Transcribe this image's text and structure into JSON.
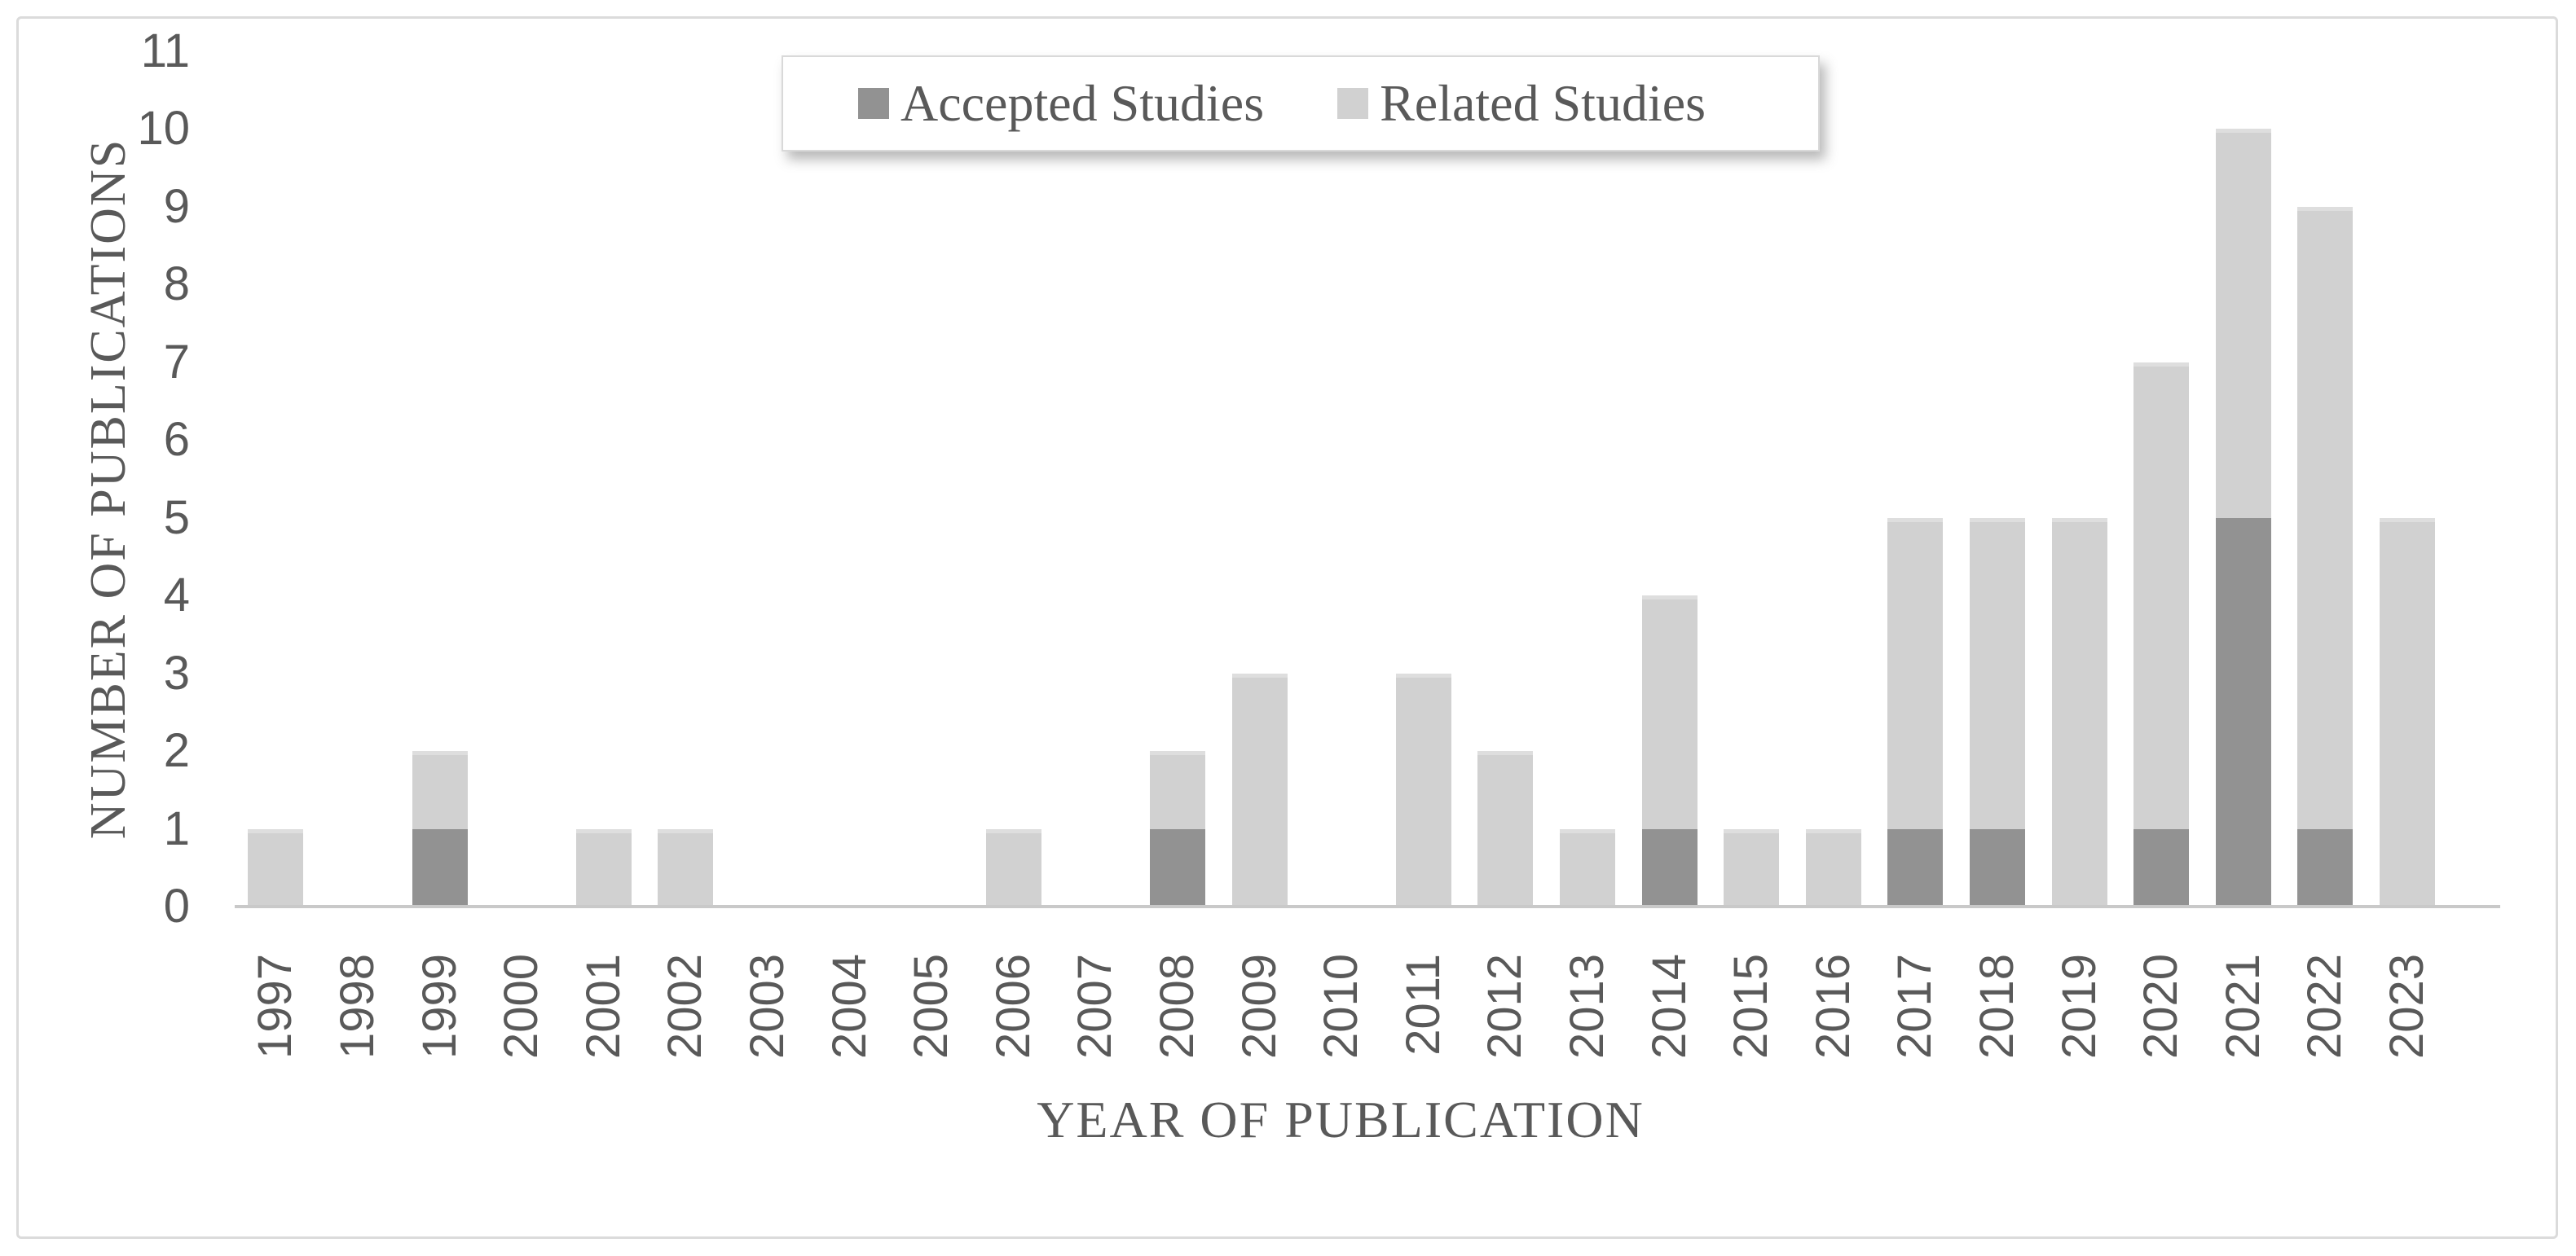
{
  "figure": {
    "y_axis_title": "NUMBER OF PUBLICATIONS",
    "x_axis_title": "YEAR OF PUBLICATION"
  },
  "colors": {
    "accepted": "#929292",
    "related": "#d1d1d1",
    "axis_line": "#c9c9c9",
    "text": "#595959",
    "frame_border": "#dbdbdb",
    "legend_border": "#d9d9d9",
    "background": "#ffffff"
  },
  "chart_data": {
    "type": "bar",
    "stacked": true,
    "title": "",
    "xlabel": "YEAR OF PUBLICATION",
    "ylabel": "NUMBER OF PUBLICATIONS",
    "ylim": [
      0,
      11
    ],
    "yticks": [
      0,
      1,
      2,
      3,
      4,
      5,
      6,
      7,
      8,
      9,
      10,
      11
    ],
    "grid": false,
    "legend_position": "top-center",
    "categories": [
      "1997",
      "1998",
      "1999",
      "2000",
      "2001",
      "2002",
      "2003",
      "2004",
      "2005",
      "2006",
      "2007",
      "2008",
      "2009",
      "2010",
      "2011",
      "2012",
      "2013",
      "2014",
      "2015",
      "2016",
      "2017",
      "2018",
      "2019",
      "2020",
      "2021",
      "2022",
      "2023"
    ],
    "series": [
      {
        "name": "Accepted Studies",
        "color": "#929292",
        "values": [
          0,
          0,
          1,
          0,
          0,
          0,
          0,
          0,
          0,
          0,
          0,
          1,
          0,
          0,
          0,
          0,
          0,
          1,
          0,
          0,
          1,
          1,
          0,
          1,
          5,
          1,
          0
        ]
      },
      {
        "name": "Related Studies",
        "color": "#d1d1d1",
        "values": [
          1,
          0,
          1,
          0,
          1,
          1,
          0,
          0,
          0,
          1,
          0,
          1,
          3,
          0,
          3,
          2,
          1,
          3,
          1,
          1,
          4,
          4,
          5,
          6,
          5,
          8,
          5
        ]
      }
    ]
  }
}
